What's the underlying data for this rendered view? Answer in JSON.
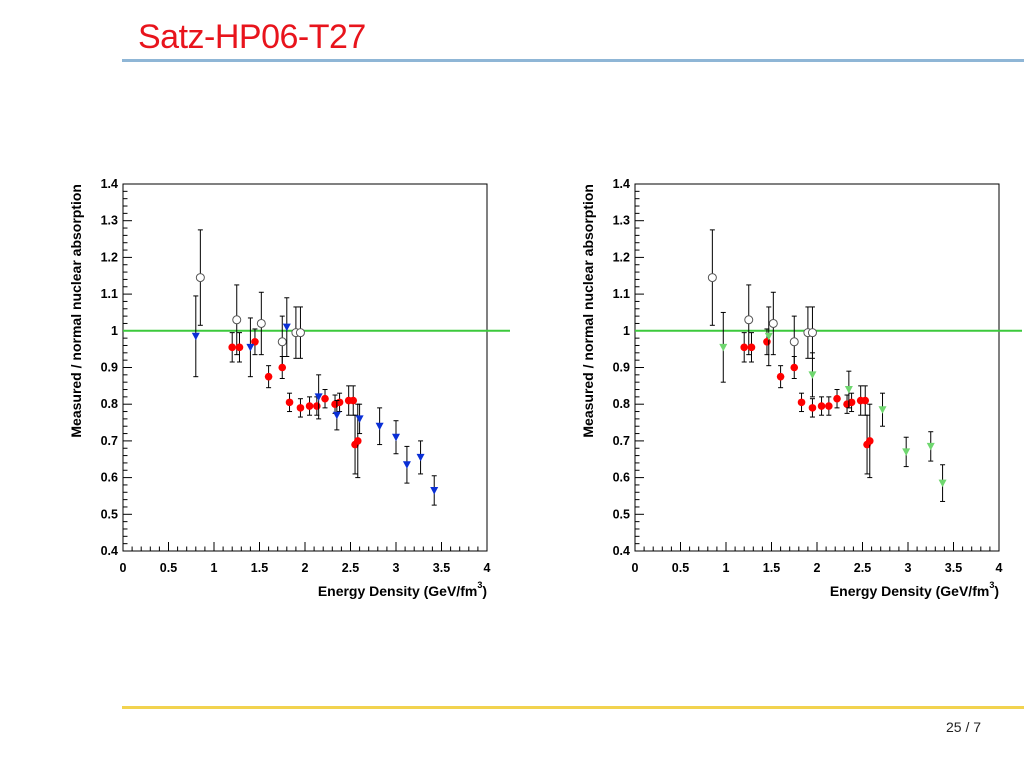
{
  "slide": {
    "title": "Satz-HP06-T27",
    "page": "25 / 7",
    "title_color": "#e8141c",
    "rule_color": "#8fb6d6",
    "footer_rule_color": "#f2d34f"
  },
  "chart_data": [
    {
      "type": "scatter",
      "title": "",
      "xlabel": "Energy Density (GeV/fm",
      "xlabel_sup": "3",
      "xlabel_end": ")",
      "ylabel": "Measured / normal nuclear absorption",
      "xlim": [
        0,
        4
      ],
      "ylim": [
        0.4,
        1.4
      ],
      "xticks": [
        "0",
        "0.5",
        "1",
        "1.5",
        "2",
        "2.5",
        "3",
        "3.5",
        "4"
      ],
      "yticks": [
        "0.4",
        "0.5",
        "0.6",
        "0.7",
        "0.8",
        "0.9",
        "1",
        "1.1",
        "1.2",
        "1.3",
        "1.4"
      ],
      "reference_line": {
        "y": 1.0,
        "color": "#3cc93c"
      },
      "series": [
        {
          "marker": "open-circle",
          "color": "#555555",
          "points": [
            {
              "x": 0.85,
              "y": 1.145,
              "err": 0.13
            },
            {
              "x": 1.25,
              "y": 1.03,
              "err": 0.095
            },
            {
              "x": 1.52,
              "y": 1.02,
              "err": 0.085
            },
            {
              "x": 1.75,
              "y": 0.97,
              "err": 0.07
            },
            {
              "x": 1.9,
              "y": 0.995,
              "err": 0.07
            },
            {
              "x": 1.95,
              "y": 0.995,
              "err": 0.07
            }
          ]
        },
        {
          "marker": "filled-circle",
          "color": "#ff0000",
          "points": [
            {
              "x": 1.2,
              "y": 0.955,
              "err": 0.04
            },
            {
              "x": 1.28,
              "y": 0.955,
              "err": 0.04
            },
            {
              "x": 1.45,
              "y": 0.97,
              "err": 0.035
            },
            {
              "x": 1.6,
              "y": 0.875,
              "err": 0.03
            },
            {
              "x": 1.75,
              "y": 0.9,
              "err": 0.03
            },
            {
              "x": 1.83,
              "y": 0.805,
              "err": 0.025
            },
            {
              "x": 1.95,
              "y": 0.79,
              "err": 0.025
            },
            {
              "x": 2.05,
              "y": 0.795,
              "err": 0.025
            },
            {
              "x": 2.13,
              "y": 0.795,
              "err": 0.025
            },
            {
              "x": 2.22,
              "y": 0.815,
              "err": 0.025
            },
            {
              "x": 2.33,
              "y": 0.8,
              "err": 0.025
            },
            {
              "x": 2.38,
              "y": 0.805,
              "err": 0.025
            },
            {
              "x": 2.48,
              "y": 0.81,
              "err": 0.04
            },
            {
              "x": 2.53,
              "y": 0.81,
              "err": 0.04
            },
            {
              "x": 2.55,
              "y": 0.69,
              "err": 0.08
            },
            {
              "x": 2.58,
              "y": 0.7,
              "err": 0.1
            }
          ]
        },
        {
          "marker": "triangle-down",
          "color": "#0a2fd6",
          "points": [
            {
              "x": 0.8,
              "y": 0.985,
              "err": 0.11
            },
            {
              "x": 1.4,
              "y": 0.955,
              "err": 0.08
            },
            {
              "x": 1.8,
              "y": 1.01,
              "err": 0.08
            },
            {
              "x": 2.15,
              "y": 0.82,
              "err": 0.06
            },
            {
              "x": 2.35,
              "y": 0.77,
              "err": 0.04
            },
            {
              "x": 2.6,
              "y": 0.76,
              "err": 0.04
            },
            {
              "x": 2.82,
              "y": 0.74,
              "err": 0.05
            },
            {
              "x": 3.0,
              "y": 0.71,
              "err": 0.045
            },
            {
              "x": 3.12,
              "y": 0.635,
              "err": 0.05
            },
            {
              "x": 3.27,
              "y": 0.655,
              "err": 0.045
            },
            {
              "x": 3.42,
              "y": 0.565,
              "err": 0.04
            }
          ]
        }
      ]
    },
    {
      "type": "scatter",
      "title": "",
      "xlabel": "Energy Density (GeV/fm",
      "xlabel_sup": "3",
      "xlabel_end": ")",
      "ylabel": "Measured / normal nuclear absorption",
      "xlim": [
        0,
        4
      ],
      "ylim": [
        0.4,
        1.4
      ],
      "xticks": [
        "0",
        "0.5",
        "1",
        "1.5",
        "2",
        "2.5",
        "3",
        "3.5",
        "4"
      ],
      "yticks": [
        "0.4",
        "0.5",
        "0.6",
        "0.7",
        "0.8",
        "0.9",
        "1",
        "1.1",
        "1.2",
        "1.3",
        "1.4"
      ],
      "reference_line": {
        "y": 1.0,
        "color": "#3cc93c"
      },
      "series": [
        {
          "marker": "open-circle",
          "color": "#555555",
          "points": [
            {
              "x": 0.85,
              "y": 1.145,
              "err": 0.13
            },
            {
              "x": 1.25,
              "y": 1.03,
              "err": 0.095
            },
            {
              "x": 1.52,
              "y": 1.02,
              "err": 0.085
            },
            {
              "x": 1.75,
              "y": 0.97,
              "err": 0.07
            },
            {
              "x": 1.9,
              "y": 0.995,
              "err": 0.07
            },
            {
              "x": 1.95,
              "y": 0.995,
              "err": 0.07
            }
          ]
        },
        {
          "marker": "filled-circle",
          "color": "#ff0000",
          "points": [
            {
              "x": 1.2,
              "y": 0.955,
              "err": 0.04
            },
            {
              "x": 1.28,
              "y": 0.955,
              "err": 0.04
            },
            {
              "x": 1.45,
              "y": 0.97,
              "err": 0.035
            },
            {
              "x": 1.6,
              "y": 0.875,
              "err": 0.03
            },
            {
              "x": 1.75,
              "y": 0.9,
              "err": 0.03
            },
            {
              "x": 1.83,
              "y": 0.805,
              "err": 0.025
            },
            {
              "x": 1.95,
              "y": 0.79,
              "err": 0.025
            },
            {
              "x": 2.05,
              "y": 0.795,
              "err": 0.025
            },
            {
              "x": 2.13,
              "y": 0.795,
              "err": 0.025
            },
            {
              "x": 2.22,
              "y": 0.815,
              "err": 0.025
            },
            {
              "x": 2.33,
              "y": 0.8,
              "err": 0.025
            },
            {
              "x": 2.38,
              "y": 0.805,
              "err": 0.025
            },
            {
              "x": 2.48,
              "y": 0.81,
              "err": 0.04
            },
            {
              "x": 2.53,
              "y": 0.81,
              "err": 0.04
            },
            {
              "x": 2.55,
              "y": 0.69,
              "err": 0.08
            },
            {
              "x": 2.58,
              "y": 0.7,
              "err": 0.1
            }
          ]
        },
        {
          "marker": "triangle-down",
          "color": "#6fd76f",
          "points": [
            {
              "x": 0.97,
              "y": 0.955,
              "err": 0.095
            },
            {
              "x": 1.47,
              "y": 0.985,
              "err": 0.08
            },
            {
              "x": 1.95,
              "y": 0.88,
              "err": 0.06
            },
            {
              "x": 2.35,
              "y": 0.84,
              "err": 0.05
            },
            {
              "x": 2.72,
              "y": 0.785,
              "err": 0.045
            },
            {
              "x": 2.98,
              "y": 0.67,
              "err": 0.04
            },
            {
              "x": 3.25,
              "y": 0.685,
              "err": 0.04
            },
            {
              "x": 3.38,
              "y": 0.585,
              "err": 0.05
            }
          ]
        }
      ]
    }
  ]
}
